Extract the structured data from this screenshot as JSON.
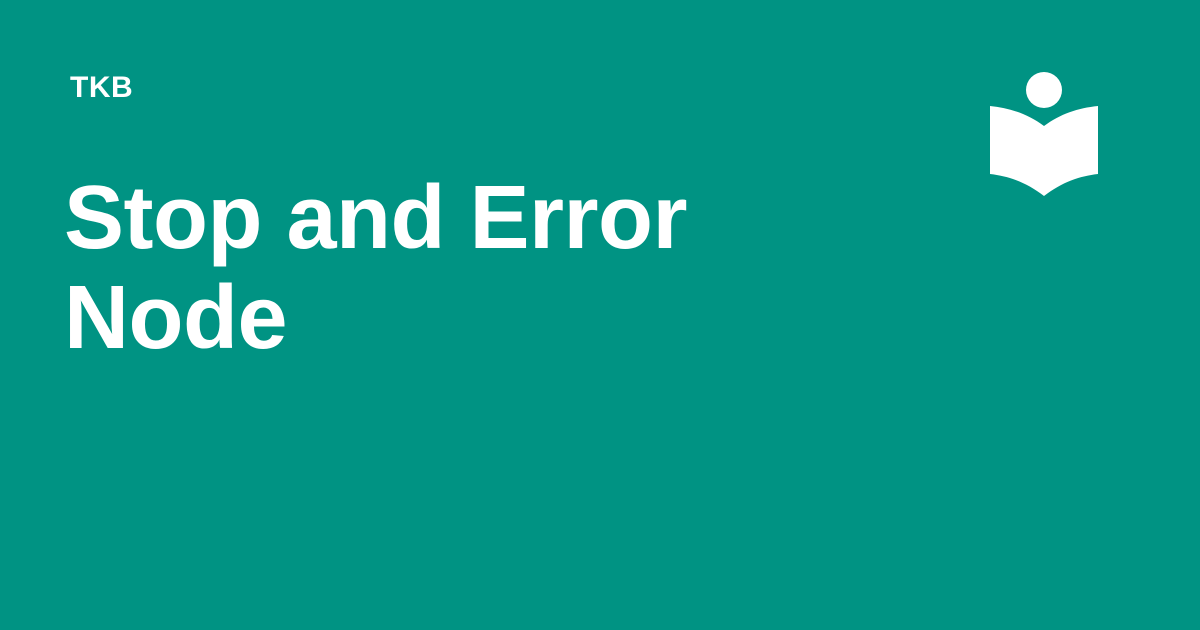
{
  "header": {
    "brand": "TKB"
  },
  "main": {
    "title": "Stop and Error Node"
  },
  "logo": {
    "icon": "reader-book-icon"
  },
  "colors": {
    "background": "#009383",
    "foreground": "#ffffff"
  }
}
